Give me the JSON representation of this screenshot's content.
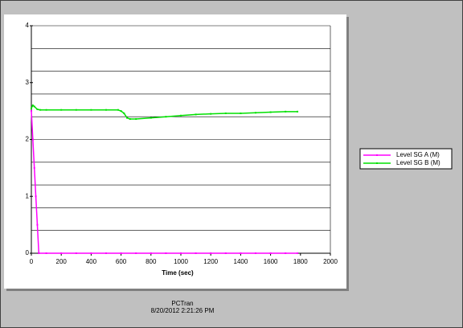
{
  "chart_data": {
    "type": "line",
    "x_label": "Time (sec)",
    "footer": [
      "PCTran",
      "8/20/2012 2:21:26 PM"
    ],
    "xlim": [
      0,
      2000
    ],
    "xticks": [
      0,
      200,
      400,
      600,
      800,
      1000,
      1200,
      1400,
      1600,
      1800,
      2000
    ],
    "ylim": [
      0,
      4
    ],
    "yticks": [
      0,
      1,
      2,
      3,
      4
    ],
    "ygrid": [
      0,
      0.4,
      0.8,
      1.2,
      1.6,
      2,
      2.4,
      2.8,
      3.2,
      3.6,
      4
    ],
    "series": [
      {
        "name": "Level SG A (M)",
        "color": "#ff00ff",
        "x": [
          0,
          10,
          20,
          30,
          40,
          50,
          100,
          200,
          300,
          400,
          500,
          600,
          700,
          800,
          900,
          1000,
          1100,
          1200,
          1300,
          1400,
          1500,
          1600,
          1700,
          1780
        ],
        "values": [
          2.5,
          2.0,
          1.5,
          1.0,
          0.5,
          0,
          0,
          0,
          0,
          0,
          0,
          0,
          0,
          0,
          0,
          0,
          0,
          0,
          0,
          0,
          0,
          0,
          0,
          0
        ]
      },
      {
        "name": "Level SG B (M)",
        "color": "#00e000",
        "x": [
          0,
          10,
          20,
          40,
          60,
          100,
          200,
          300,
          400,
          500,
          580,
          600,
          620,
          640,
          660,
          700,
          800,
          900,
          1000,
          1100,
          1200,
          1300,
          1400,
          1500,
          1600,
          1700,
          1780
        ],
        "values": [
          2.55,
          2.6,
          2.58,
          2.53,
          2.52,
          2.52,
          2.52,
          2.52,
          2.52,
          2.52,
          2.52,
          2.5,
          2.46,
          2.38,
          2.36,
          2.36,
          2.38,
          2.4,
          2.42,
          2.44,
          2.45,
          2.46,
          2.46,
          2.47,
          2.48,
          2.49,
          2.49
        ]
      }
    ]
  }
}
